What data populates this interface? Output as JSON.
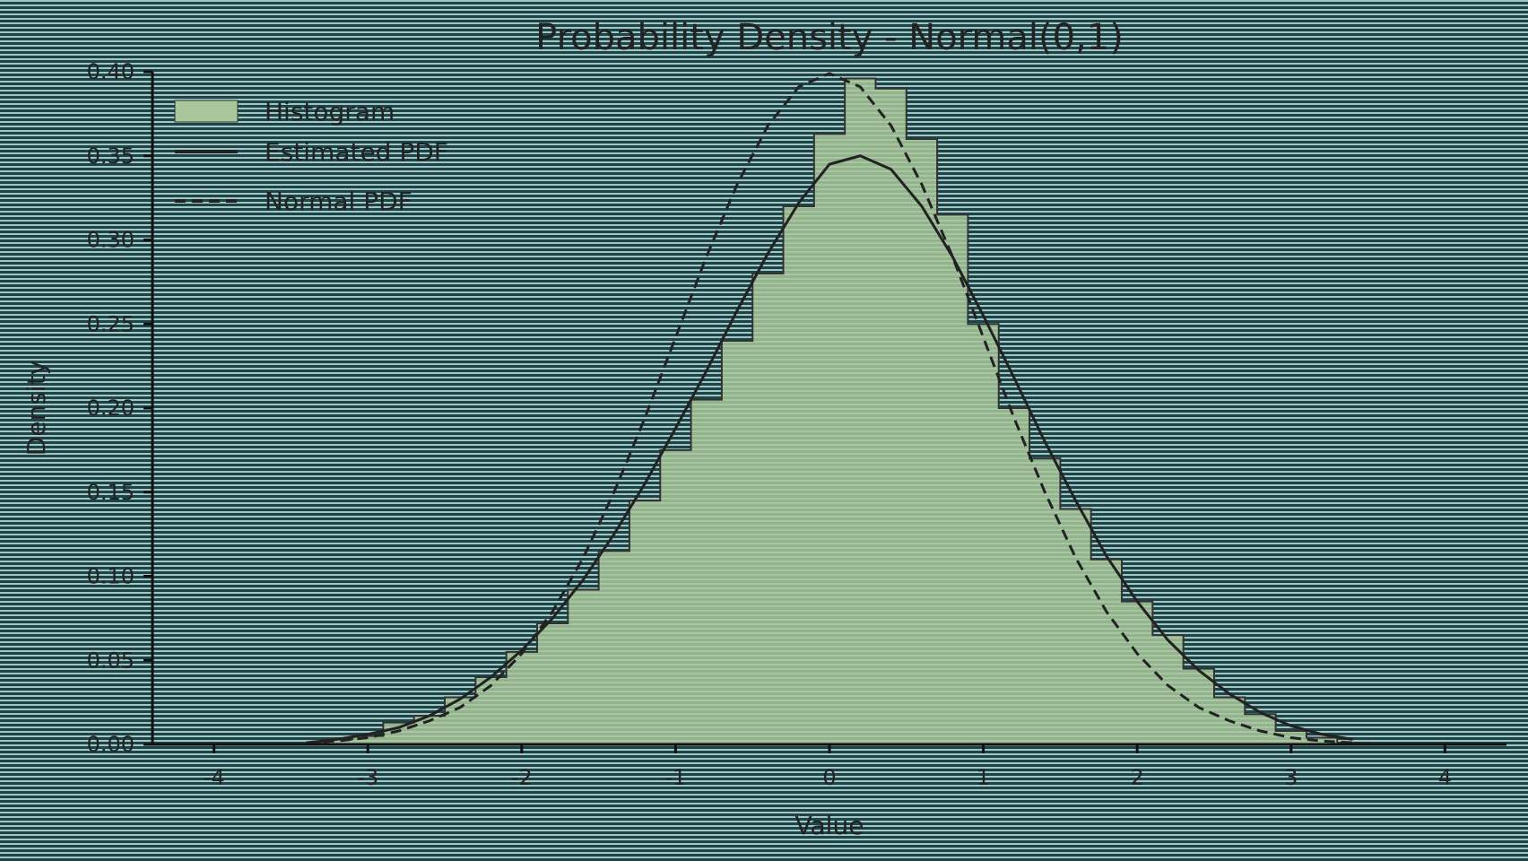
{
  "chart_data": {
    "type": "area",
    "title": "Probability Density - Normal(0,1)",
    "xlabel": "Value",
    "ylabel": "Density",
    "xlim": [
      -4.4,
      4.4
    ],
    "ylim": [
      0.0,
      0.4
    ],
    "x_ticks": [
      -4,
      -3,
      -2,
      -1,
      0,
      1,
      2,
      3,
      4
    ],
    "y_ticks": [
      0.0,
      0.05,
      0.1,
      0.15,
      0.2,
      0.25,
      0.3,
      0.35,
      0.4
    ],
    "y_tick_labels": [
      "0.00",
      "0.05",
      "0.10",
      "0.15",
      "0.20",
      "0.25",
      "0.30",
      "0.35",
      "0.40"
    ],
    "grid": false,
    "legend_position": "top-left",
    "legend": [
      "Histogram",
      "Estimated PDF",
      "Normal PDF"
    ],
    "series": [
      {
        "name": "Histogram",
        "style": "filled-step",
        "color": "#a8c79a",
        "edge_color": "#333333",
        "x": [
          -3.4,
          -3.2,
          -3.0,
          -2.8,
          -2.6,
          -2.4,
          -2.2,
          -2.0,
          -1.8,
          -1.6,
          -1.4,
          -1.2,
          -1.0,
          -0.8,
          -0.6,
          -0.4,
          -0.2,
          0.0,
          0.2,
          0.4,
          0.6,
          0.8,
          1.0,
          1.2,
          1.4,
          1.6,
          1.8,
          2.0,
          2.2,
          2.4,
          2.6,
          2.8,
          3.0,
          3.2,
          3.4
        ],
        "values": [
          0.0,
          0.003,
          0.005,
          0.013,
          0.017,
          0.028,
          0.04,
          0.055,
          0.072,
          0.092,
          0.115,
          0.145,
          0.175,
          0.205,
          0.24,
          0.28,
          0.32,
          0.363,
          0.396,
          0.39,
          0.36,
          0.315,
          0.25,
          0.2,
          0.17,
          0.14,
          0.11,
          0.085,
          0.065,
          0.045,
          0.028,
          0.018,
          0.008,
          0.004,
          0.001
        ]
      },
      {
        "name": "Estimated PDF",
        "style": "solid",
        "color": "#222222",
        "x": [
          -3.4,
          -3.2,
          -3.0,
          -2.8,
          -2.6,
          -2.4,
          -2.2,
          -2.0,
          -1.8,
          -1.6,
          -1.4,
          -1.2,
          -1.0,
          -0.8,
          -0.6,
          -0.4,
          -0.2,
          0.0,
          0.2,
          0.4,
          0.6,
          0.8,
          1.0,
          1.2,
          1.4,
          1.6,
          1.8,
          2.0,
          2.2,
          2.4,
          2.6,
          2.8,
          3.0,
          3.2,
          3.4
        ],
        "values": [
          0.001,
          0.003,
          0.006,
          0.01,
          0.017,
          0.027,
          0.04,
          0.056,
          0.075,
          0.098,
          0.125,
          0.155,
          0.188,
          0.222,
          0.258,
          0.292,
          0.322,
          0.345,
          0.35,
          0.342,
          0.32,
          0.29,
          0.255,
          0.218,
          0.18,
          0.145,
          0.112,
          0.085,
          0.062,
          0.044,
          0.03,
          0.019,
          0.011,
          0.006,
          0.003
        ]
      },
      {
        "name": "Normal PDF",
        "style": "dashed",
        "color": "#222222",
        "x": [
          -3.4,
          -3.2,
          -3.0,
          -2.8,
          -2.6,
          -2.4,
          -2.2,
          -2.0,
          -1.8,
          -1.6,
          -1.4,
          -1.2,
          -1.0,
          -0.8,
          -0.6,
          -0.4,
          -0.2,
          0.0,
          0.2,
          0.4,
          0.6,
          0.8,
          1.0,
          1.2,
          1.4,
          1.6,
          1.8,
          2.0,
          2.2,
          2.4,
          2.6,
          2.8,
          3.0,
          3.2,
          3.4
        ],
        "values": [
          0.001,
          0.002,
          0.004,
          0.008,
          0.014,
          0.022,
          0.035,
          0.054,
          0.079,
          0.111,
          0.15,
          0.194,
          0.242,
          0.29,
          0.333,
          0.368,
          0.391,
          0.399,
          0.391,
          0.368,
          0.333,
          0.29,
          0.242,
          0.194,
          0.15,
          0.111,
          0.079,
          0.054,
          0.035,
          0.022,
          0.014,
          0.008,
          0.004,
          0.002,
          0.001
        ]
      }
    ]
  }
}
